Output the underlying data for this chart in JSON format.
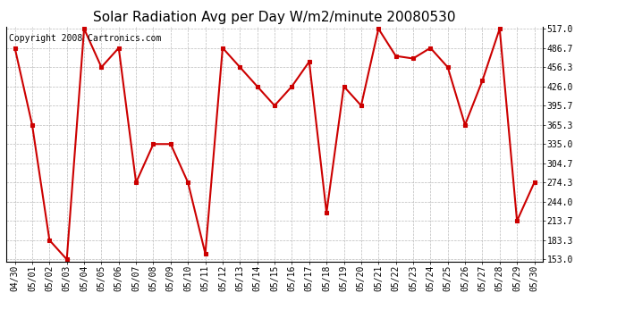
{
  "title": "Solar Radiation Avg per Day W/m2/minute 20080530",
  "copyright": "Copyright 2008 Cartronics.com",
  "dates": [
    "04/30",
    "05/01",
    "05/02",
    "05/03",
    "05/04",
    "05/05",
    "05/06",
    "05/07",
    "05/08",
    "05/09",
    "05/10",
    "05/11",
    "05/12",
    "05/13",
    "05/14",
    "05/15",
    "05/16",
    "05/17",
    "05/18",
    "05/19",
    "05/20",
    "05/21",
    "05/22",
    "05/23",
    "05/24",
    "05/25",
    "05/26",
    "05/27",
    "05/28",
    "05/29",
    "05/30"
  ],
  "values": [
    486.7,
    365.3,
    183.3,
    153.0,
    517.0,
    456.3,
    486.7,
    274.3,
    335.0,
    335.0,
    274.3,
    162.0,
    486.7,
    456.3,
    426.0,
    395.7,
    426.0,
    465.0,
    226.7,
    426.0,
    395.7,
    517.0,
    474.0,
    470.0,
    486.7,
    456.3,
    365.3,
    435.0,
    517.0,
    213.7,
    274.3
  ],
  "line_color": "#cc0000",
  "marker": "s",
  "marker_size": 3,
  "line_width": 1.5,
  "ymin": 153.0,
  "ymax": 517.0,
  "yticks": [
    153.0,
    183.3,
    213.7,
    244.0,
    274.3,
    304.7,
    335.0,
    365.3,
    395.7,
    426.0,
    456.3,
    486.7,
    517.0
  ],
  "bg_color": "#ffffff",
  "grid_color": "#bbbbbb",
  "title_fontsize": 11,
  "copyright_fontsize": 7,
  "tick_fontsize": 7
}
